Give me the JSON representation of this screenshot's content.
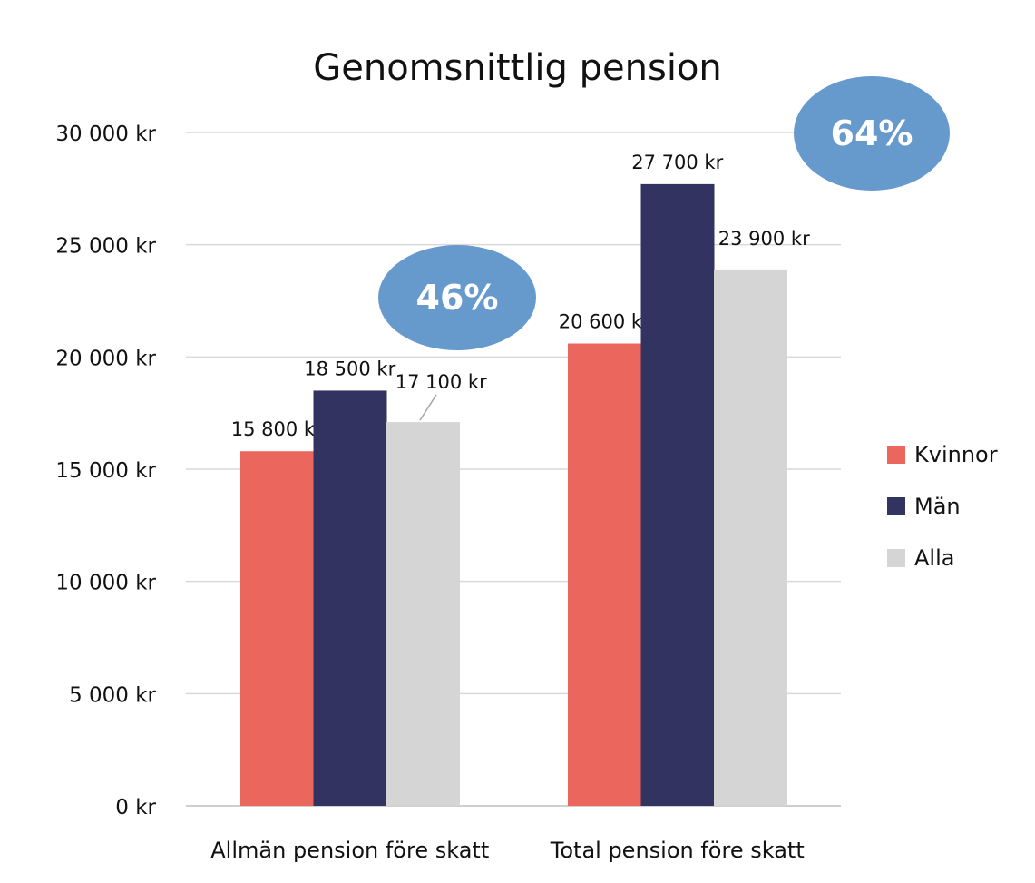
{
  "chart_data": {
    "type": "bar",
    "title": "Genomsnittlig pension",
    "categories": [
      "Allmän pension före skatt",
      "Total pension före skatt"
    ],
    "series": [
      {
        "name": "Kvinnor",
        "values": [
          15800,
          20600
        ],
        "labels": [
          "15 800 kr",
          "20 600 kr"
        ],
        "color": "#EB675E"
      },
      {
        "name": "Män",
        "values": [
          18500,
          27700
        ],
        "labels": [
          "18 500 kr",
          "27 700 kr"
        ],
        "color": "#333362"
      },
      {
        "name": "Alla",
        "values": [
          17100,
          23900
        ],
        "labels": [
          "17 100 kr",
          "23 900 kr"
        ],
        "color": "#D5D5D5"
      }
    ],
    "ylim": [
      0,
      30000
    ],
    "yticks": [
      0,
      5000,
      10000,
      15000,
      20000,
      25000,
      30000
    ],
    "ytick_labels": [
      "0 kr",
      "5 000 kr",
      "10 000 kr",
      "15 000 kr",
      "20 000 kr",
      "25 000 kr",
      "30 000 kr"
    ],
    "grid": true,
    "legend_position": "right",
    "annotations": [
      {
        "text": "46%",
        "category": "Allmän pension före skatt",
        "color": "#6699CC"
      },
      {
        "text": "64%",
        "category": "Total pension före skatt",
        "color": "#6699CC"
      }
    ]
  }
}
